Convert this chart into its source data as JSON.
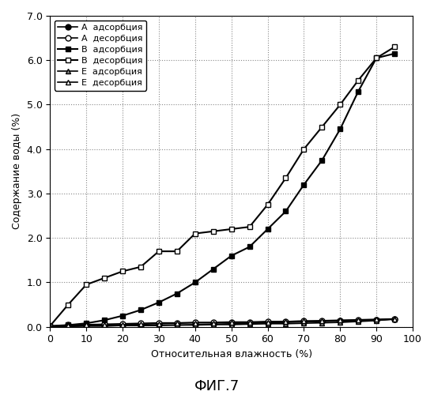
{
  "title": "ФИГ.7",
  "xlabel": "Относительная влажность (%)",
  "ylabel": "Содержание воды (%)",
  "xlim": [
    0,
    100
  ],
  "ylim": [
    0.0,
    7.0
  ],
  "yticks": [
    0.0,
    1.0,
    2.0,
    3.0,
    4.0,
    5.0,
    6.0,
    7.0
  ],
  "xticks": [
    0,
    10,
    20,
    30,
    40,
    50,
    60,
    70,
    80,
    90,
    100
  ],
  "A_ads_x": [
    0,
    5,
    10,
    15,
    20,
    25,
    30,
    35,
    40,
    45,
    50,
    55,
    60,
    65,
    70,
    75,
    80,
    85,
    90,
    95
  ],
  "A_ads_y": [
    0.01,
    0.01,
    0.02,
    0.02,
    0.03,
    0.03,
    0.04,
    0.04,
    0.05,
    0.06,
    0.07,
    0.08,
    0.09,
    0.1,
    0.11,
    0.12,
    0.13,
    0.14,
    0.15,
    0.17
  ],
  "A_des_x": [
    95,
    90,
    85,
    80,
    75,
    70,
    65,
    60,
    55,
    50,
    45,
    40,
    35,
    30,
    25,
    20,
    15,
    10,
    5,
    0
  ],
  "A_des_y": [
    0.17,
    0.16,
    0.15,
    0.14,
    0.13,
    0.13,
    0.12,
    0.12,
    0.11,
    0.11,
    0.1,
    0.1,
    0.09,
    0.09,
    0.08,
    0.07,
    0.06,
    0.05,
    0.04,
    0.01
  ],
  "B_ads_x": [
    0,
    5,
    10,
    15,
    20,
    25,
    30,
    35,
    40,
    45,
    50,
    55,
    60,
    65,
    70,
    75,
    80,
    85,
    90,
    95
  ],
  "B_ads_y": [
    0.02,
    0.04,
    0.08,
    0.15,
    0.25,
    0.38,
    0.55,
    0.75,
    1.0,
    1.3,
    1.6,
    1.8,
    2.2,
    2.6,
    3.2,
    3.75,
    4.45,
    5.3,
    6.05,
    6.15
  ],
  "B_des_x": [
    95,
    90,
    85,
    80,
    75,
    70,
    65,
    60,
    55,
    50,
    45,
    40,
    35,
    30,
    25,
    20,
    15,
    10,
    5,
    0
  ],
  "B_des_y": [
    6.3,
    6.05,
    5.55,
    5.0,
    4.5,
    4.0,
    3.35,
    2.75,
    2.25,
    2.2,
    2.15,
    2.1,
    1.7,
    1.7,
    1.35,
    1.25,
    1.1,
    0.95,
    0.5,
    0.02
  ],
  "E_ads_x": [
    0,
    5,
    10,
    15,
    20,
    25,
    30,
    35,
    40,
    45,
    50,
    55,
    60,
    65,
    70,
    75,
    80,
    85,
    90,
    95
  ],
  "E_ads_y": [
    0.01,
    0.01,
    0.02,
    0.02,
    0.03,
    0.03,
    0.03,
    0.04,
    0.04,
    0.05,
    0.05,
    0.06,
    0.07,
    0.07,
    0.08,
    0.09,
    0.1,
    0.12,
    0.14,
    0.18
  ],
  "E_des_x": [
    95,
    90,
    85,
    80,
    75,
    70,
    65,
    60,
    55,
    50,
    45,
    40,
    35,
    30,
    25,
    20,
    15,
    10,
    5,
    0
  ],
  "E_des_y": [
    0.18,
    0.17,
    0.16,
    0.15,
    0.14,
    0.13,
    0.12,
    0.11,
    0.1,
    0.1,
    0.09,
    0.09,
    0.08,
    0.07,
    0.06,
    0.05,
    0.04,
    0.04,
    0.03,
    0.01
  ],
  "legend_labels": [
    "A  адсорбция",
    "A  десорбция",
    "B  адсорбция",
    "B  десорбция",
    "E  адсорбция",
    "E  десорбция"
  ],
  "background_color": "#ffffff",
  "grid_color": "#888888"
}
